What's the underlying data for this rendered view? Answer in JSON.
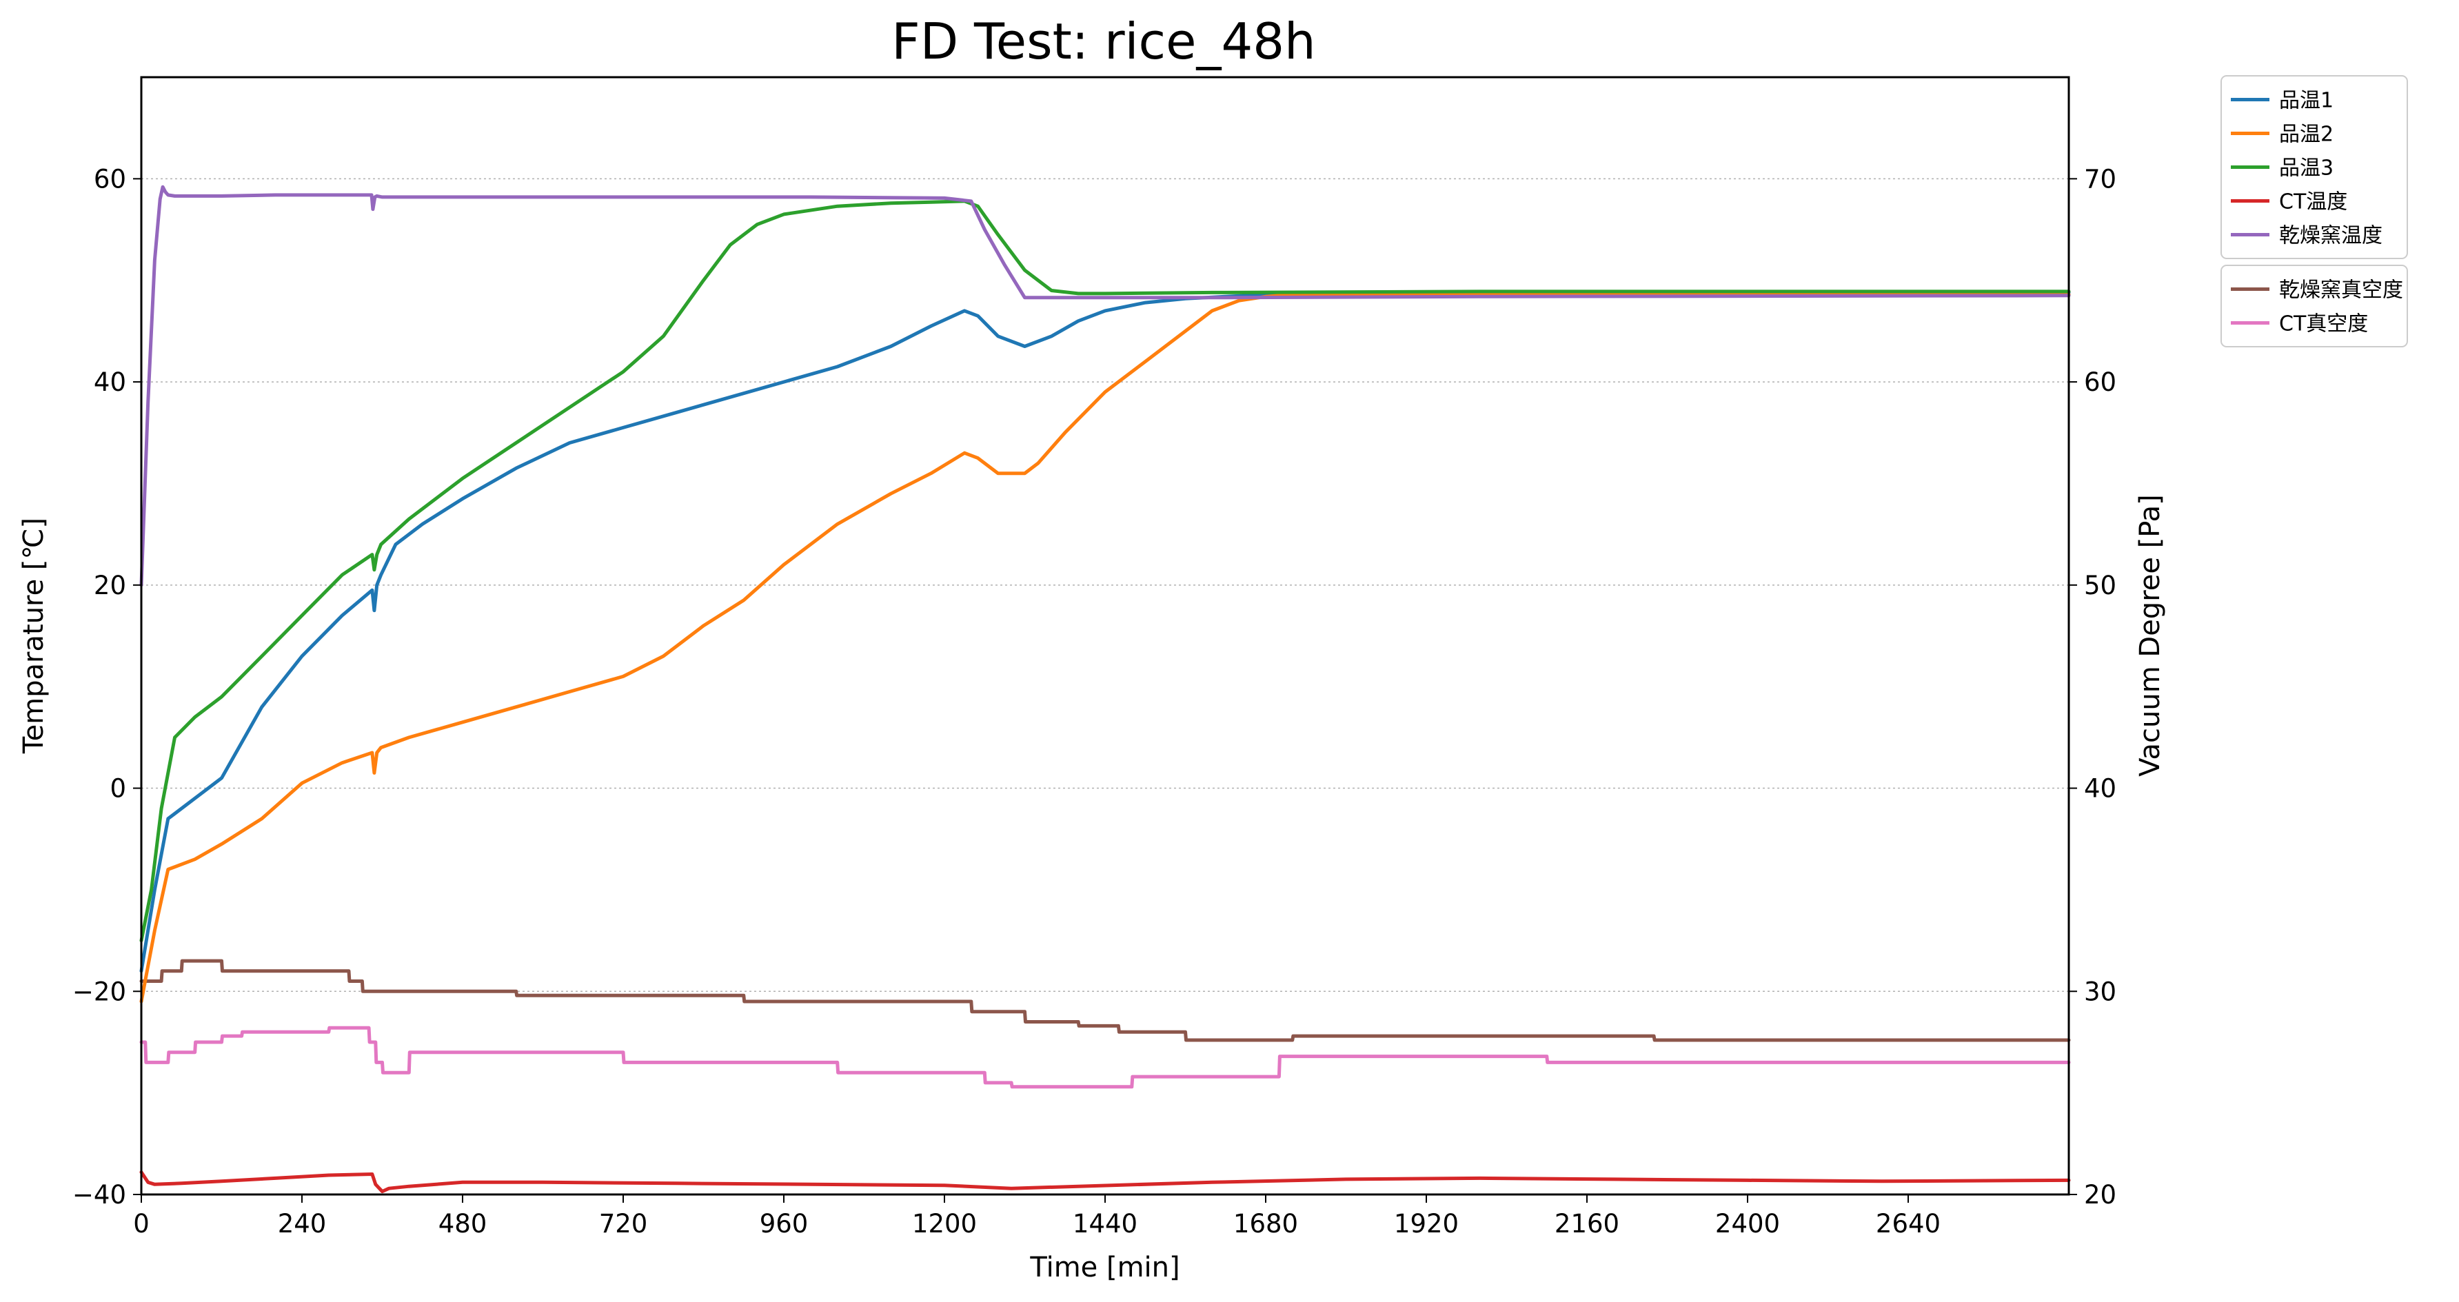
{
  "chart_data": {
    "type": "line",
    "title": "FD Test: rice_48h",
    "xlabel": "Time [min]",
    "ylabel_left": "Temparature [℃]",
    "ylabel_right": "Vacuum Degree [Pa]",
    "xlim": [
      0,
      2880
    ],
    "ylim_left": [
      -40,
      70
    ],
    "ylim_right": [
      20,
      75
    ],
    "x_ticks": [
      0,
      240,
      480,
      720,
      960,
      1200,
      1440,
      1680,
      1920,
      2160,
      2400,
      2640
    ],
    "y_left_ticks": [
      -40,
      -20,
      0,
      20,
      40,
      60
    ],
    "y_right_ticks": [
      20,
      30,
      40,
      50,
      60,
      70
    ],
    "grid": "horizontal-dotted",
    "legend_placement": "outside-top-right",
    "temperature_series": [
      {
        "name": "品温1",
        "color": "#1f77b4",
        "x": [
          0,
          20,
          40,
          80,
          120,
          180,
          240,
          300,
          345,
          348,
          352,
          358,
          380,
          420,
          480,
          560,
          640,
          720,
          800,
          880,
          960,
          1040,
          1120,
          1180,
          1230,
          1250,
          1280,
          1320,
          1360,
          1400,
          1440,
          1500,
          1560,
          1620,
          1680,
          1740,
          1800,
          2000,
          2400,
          2880
        ],
        "y": [
          -18,
          -10,
          -3,
          -1,
          1,
          8,
          13,
          17,
          19.5,
          17.5,
          20,
          21,
          24,
          26,
          28.5,
          31.5,
          34,
          35.5,
          37,
          38.5,
          40,
          41.5,
          43.5,
          45.5,
          47,
          46.5,
          44.5,
          43.5,
          44.5,
          46,
          47,
          47.8,
          48.2,
          48.4,
          48.6,
          48.6,
          48.7,
          48.7,
          48.8,
          48.8
        ]
      },
      {
        "name": "品温2",
        "color": "#ff7f0e",
        "x": [
          0,
          20,
          40,
          80,
          120,
          180,
          240,
          300,
          345,
          348,
          352,
          358,
          400,
          480,
          560,
          640,
          720,
          780,
          840,
          900,
          960,
          1040,
          1120,
          1180,
          1230,
          1250,
          1280,
          1320,
          1340,
          1380,
          1440,
          1500,
          1560,
          1600,
          1640,
          1680,
          1720,
          1760,
          1800,
          2000,
          2880
        ],
        "y": [
          -21,
          -14,
          -8,
          -7,
          -5.5,
          -3,
          0.5,
          2.5,
          3.5,
          1.5,
          3.5,
          4,
          5,
          6.5,
          8,
          9.5,
          11,
          13,
          16,
          18.5,
          22,
          26,
          29,
          31,
          33,
          32.5,
          31,
          31,
          32,
          35,
          39,
          42,
          45,
          47,
          48,
          48.4,
          48.6,
          48.6,
          48.6,
          48.6,
          48.6
        ]
      },
      {
        "name": "品温3",
        "color": "#2ca02c",
        "x": [
          0,
          15,
          30,
          50,
          80,
          120,
          180,
          240,
          300,
          345,
          348,
          352,
          358,
          400,
          480,
          560,
          640,
          720,
          780,
          840,
          880,
          920,
          960,
          1040,
          1120,
          1180,
          1230,
          1250,
          1280,
          1320,
          1360,
          1400,
          1440,
          1600,
          2000,
          2880
        ],
        "y": [
          -15,
          -10,
          -2,
          5,
          7,
          9,
          13,
          17,
          21,
          23,
          21.5,
          23,
          24,
          26.5,
          30.5,
          34,
          37.5,
          41,
          44.5,
          50,
          53.5,
          55.5,
          56.5,
          57.3,
          57.6,
          57.7,
          57.8,
          57.3,
          54.5,
          51,
          49,
          48.7,
          48.7,
          48.8,
          48.9,
          48.9
        ]
      },
      {
        "name": "CT温度",
        "color": "#d62728",
        "x": [
          0,
          10,
          20,
          60,
          120,
          200,
          280,
          345,
          350,
          360,
          370,
          400,
          480,
          600,
          800,
          1000,
          1200,
          1300,
          1400,
          1600,
          1800,
          2000,
          2200,
          2400,
          2600,
          2880
        ],
        "y": [
          -37.8,
          -38.8,
          -39,
          -38.9,
          -38.7,
          -38.4,
          -38.1,
          -38,
          -39,
          -39.7,
          -39.4,
          -39.2,
          -38.8,
          -38.8,
          -38.9,
          -39,
          -39.1,
          -39.4,
          -39.2,
          -38.8,
          -38.5,
          -38.4,
          -38.5,
          -38.6,
          -38.7,
          -38.6
        ]
      },
      {
        "name": "乾燥窯温度",
        "color": "#9467bd",
        "x": [
          0,
          10,
          20,
          28,
          32,
          36,
          40,
          50,
          80,
          120,
          200,
          300,
          344,
          346,
          349,
          352,
          360,
          400,
          600,
          800,
          1000,
          1200,
          1240,
          1260,
          1290,
          1320,
          1400,
          1600,
          2000,
          2880
        ],
        "y": [
          20,
          38,
          52,
          58,
          59.2,
          58.7,
          58.4,
          58.3,
          58.3,
          58.3,
          58.4,
          58.4,
          58.4,
          57,
          58.2,
          58.3,
          58.2,
          58.2,
          58.2,
          58.2,
          58.2,
          58.1,
          57.8,
          55,
          51.5,
          48.3,
          48.3,
          48.3,
          48.4,
          48.5
        ]
      }
    ],
    "vacuum_series": [
      {
        "name": "乾燥窯真空度",
        "color": "#8c564b",
        "x": [
          0,
          30,
          31,
          60,
          61,
          120,
          121,
          180,
          181,
          240,
          300,
          310,
          311,
          330,
          331,
          370,
          371,
          400,
          401,
          560,
          561,
          640,
          641,
          900,
          901,
          960,
          961,
          1240,
          1241,
          1320,
          1321,
          1400,
          1401,
          1460,
          1461,
          1560,
          1561,
          1720,
          1721,
          2260,
          2261,
          2880
        ],
        "y": [
          30.5,
          30.5,
          31,
          31,
          31.5,
          31.5,
          31,
          31,
          31,
          31,
          31,
          31,
          30.5,
          30.5,
          30,
          30,
          30,
          30,
          30,
          30,
          29.8,
          29.8,
          29.8,
          29.8,
          29.5,
          29.5,
          29.5,
          29.5,
          29,
          29,
          28.5,
          28.5,
          28.3,
          28.3,
          28,
          28,
          27.6,
          27.6,
          27.8,
          27.8,
          27.6,
          27.6
        ]
      },
      {
        "name": "CT真空度",
        "color": "#e377c2",
        "x": [
          0,
          6,
          7,
          40,
          41,
          80,
          81,
          120,
          121,
          150,
          151,
          200,
          201,
          280,
          281,
          340,
          341,
          350,
          351,
          360,
          361,
          400,
          401,
          720,
          721,
          1040,
          1041,
          1260,
          1261,
          1300,
          1301,
          1480,
          1481,
          1700,
          1701,
          2100,
          2101,
          2880
        ],
        "y": [
          27.5,
          27.5,
          26.5,
          26.5,
          27,
          27,
          27.5,
          27.5,
          27.8,
          27.8,
          28,
          28,
          28,
          28,
          28.2,
          28.2,
          27.5,
          27.5,
          26.5,
          26.5,
          26,
          26,
          27,
          27,
          26.5,
          26.5,
          26,
          26,
          25.5,
          25.5,
          25.3,
          25.3,
          25.8,
          25.8,
          26.8,
          26.8,
          26.5,
          26.5
        ]
      }
    ]
  }
}
